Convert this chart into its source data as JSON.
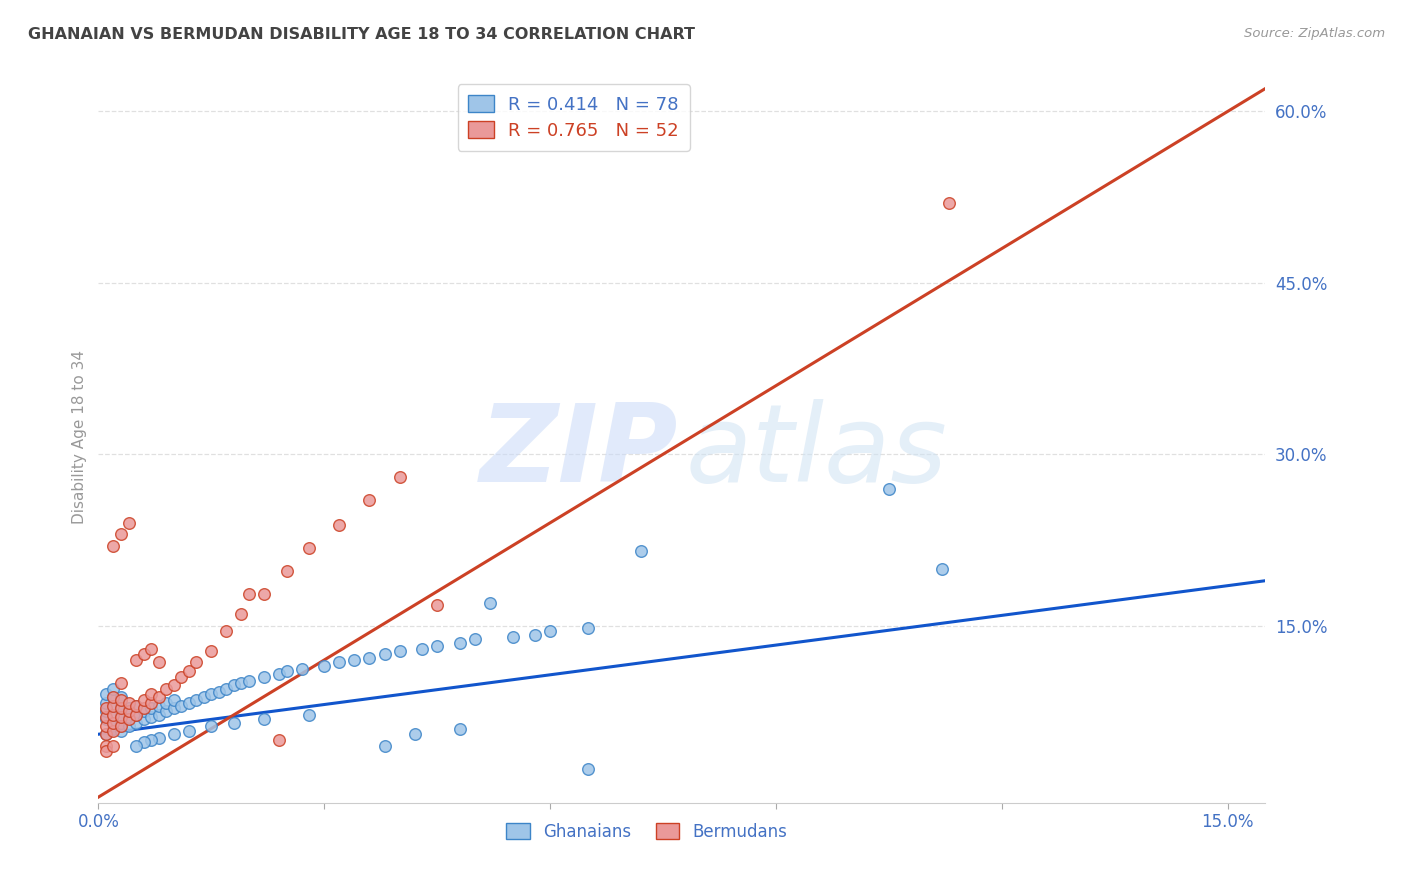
{
  "title": "GHANAIAN VS BERMUDAN DISABILITY AGE 18 TO 34 CORRELATION CHART",
  "source": "Source: ZipAtlas.com",
  "ylabel": "Disability Age 18 to 34",
  "xlim": [
    0.0,
    0.155
  ],
  "ylim": [
    -0.005,
    0.635
  ],
  "xtick_positions": [
    0.0,
    0.03,
    0.06,
    0.09,
    0.12,
    0.15
  ],
  "xtick_labels": [
    "0.0%",
    "",
    "",
    "",
    "",
    "15.0%"
  ],
  "ytick_values_right": [
    0.15,
    0.3,
    0.45,
    0.6
  ],
  "ytick_labels_right": [
    "15.0%",
    "30.0%",
    "45.0%",
    "60.0%"
  ],
  "ghanaian_face_color": "#9fc5e8",
  "ghanaian_edge_color": "#3d85c8",
  "bermudan_face_color": "#ea9999",
  "bermudan_edge_color": "#cc4125",
  "ghanaian_line_color": "#1155cc",
  "bermudan_line_color": "#cc4125",
  "background_color": "#ffffff",
  "grid_color": "#e0e0e0",
  "title_color": "#434343",
  "axis_label_color": "#4472c4",
  "source_color": "#999999",
  "ylabel_color": "#999999",
  "watermark_zip_color": "#c9daf8",
  "watermark_atlas_color": "#cfe2f3",
  "legend_edge_color": "#cccccc",
  "bottom_legend_color": "#4472c4",
  "ghana_x": [
    0.001,
    0.001,
    0.001,
    0.001,
    0.001,
    0.002,
    0.002,
    0.002,
    0.002,
    0.002,
    0.002,
    0.003,
    0.003,
    0.003,
    0.003,
    0.003,
    0.004,
    0.004,
    0.004,
    0.005,
    0.005,
    0.005,
    0.006,
    0.006,
    0.007,
    0.007,
    0.008,
    0.008,
    0.009,
    0.009,
    0.01,
    0.01,
    0.011,
    0.012,
    0.013,
    0.014,
    0.015,
    0.016,
    0.017,
    0.018,
    0.019,
    0.02,
    0.022,
    0.024,
    0.025,
    0.027,
    0.03,
    0.032,
    0.034,
    0.036,
    0.038,
    0.04,
    0.043,
    0.045,
    0.048,
    0.05,
    0.055,
    0.058,
    0.06,
    0.065,
    0.048,
    0.042,
    0.028,
    0.022,
    0.018,
    0.015,
    0.012,
    0.01,
    0.008,
    0.007,
    0.006,
    0.005,
    0.105,
    0.112,
    0.072,
    0.052,
    0.065,
    0.038
  ],
  "ghana_y": [
    0.055,
    0.068,
    0.075,
    0.082,
    0.09,
    0.06,
    0.065,
    0.072,
    0.08,
    0.088,
    0.095,
    0.058,
    0.065,
    0.072,
    0.08,
    0.088,
    0.062,
    0.07,
    0.078,
    0.065,
    0.072,
    0.08,
    0.068,
    0.075,
    0.07,
    0.078,
    0.072,
    0.08,
    0.075,
    0.082,
    0.078,
    0.085,
    0.08,
    0.082,
    0.085,
    0.088,
    0.09,
    0.092,
    0.095,
    0.098,
    0.1,
    0.102,
    0.105,
    0.108,
    0.11,
    0.112,
    0.115,
    0.118,
    0.12,
    0.122,
    0.125,
    0.128,
    0.13,
    0.132,
    0.135,
    0.138,
    0.14,
    0.142,
    0.145,
    0.148,
    0.06,
    0.055,
    0.072,
    0.068,
    0.065,
    0.062,
    0.058,
    0.055,
    0.052,
    0.05,
    0.048,
    0.045,
    0.27,
    0.2,
    0.215,
    0.17,
    0.025,
    0.045
  ],
  "bermuda_x": [
    0.001,
    0.001,
    0.001,
    0.001,
    0.001,
    0.002,
    0.002,
    0.002,
    0.002,
    0.002,
    0.003,
    0.003,
    0.003,
    0.003,
    0.004,
    0.004,
    0.004,
    0.005,
    0.005,
    0.006,
    0.006,
    0.007,
    0.007,
    0.008,
    0.009,
    0.01,
    0.011,
    0.012,
    0.013,
    0.015,
    0.017,
    0.019,
    0.022,
    0.025,
    0.028,
    0.032,
    0.036,
    0.04,
    0.045,
    0.02,
    0.024,
    0.002,
    0.003,
    0.004,
    0.005,
    0.006,
    0.007,
    0.008,
    0.001,
    0.002,
    0.113,
    0.003
  ],
  "bermuda_y": [
    0.055,
    0.062,
    0.07,
    0.078,
    0.045,
    0.058,
    0.065,
    0.072,
    0.08,
    0.088,
    0.062,
    0.07,
    0.078,
    0.085,
    0.068,
    0.075,
    0.082,
    0.072,
    0.08,
    0.078,
    0.085,
    0.082,
    0.09,
    0.088,
    0.095,
    0.098,
    0.105,
    0.11,
    0.118,
    0.128,
    0.145,
    0.16,
    0.178,
    0.198,
    0.218,
    0.238,
    0.26,
    0.28,
    0.168,
    0.178,
    0.05,
    0.22,
    0.23,
    0.24,
    0.12,
    0.125,
    0.13,
    0.118,
    0.04,
    0.045,
    0.52,
    0.1
  ]
}
